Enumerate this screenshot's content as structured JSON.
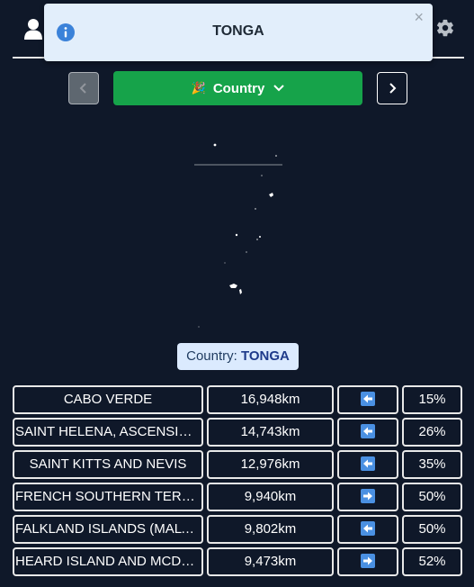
{
  "toast": {
    "message": "TONGA",
    "close": "×",
    "icon": "info-icon"
  },
  "header": {
    "user_icon": "user-icon",
    "settings_icon": "gear-icon"
  },
  "guess_button": {
    "label": "Country",
    "emoji": "🎉"
  },
  "answer": {
    "prefix": "Country: ",
    "name": "TONGA"
  },
  "colors": {
    "background": "#0f1829",
    "button_green": "#16a34a",
    "toast_bg": "#e2eefb",
    "label_bg": "#dbeafe",
    "arrow_blue": "#4a90e2"
  },
  "guesses": [
    {
      "name": "CABO VERDE",
      "distance": "16,948km",
      "direction": "left",
      "percent": "15%"
    },
    {
      "name": "SAINT HELENA, ASCENSION AND TRISTAN DA CUNHA",
      "distance": "14,743km",
      "direction": "left",
      "percent": "26%"
    },
    {
      "name": "SAINT KITTS AND NEVIS",
      "distance": "12,976km",
      "direction": "left",
      "percent": "35%"
    },
    {
      "name": "FRENCH SOUTHERN TERRITORIES",
      "distance": "9,940km",
      "direction": "right",
      "percent": "50%"
    },
    {
      "name": "FALKLAND ISLANDS (MALVINAS)",
      "distance": "9,802km",
      "direction": "left",
      "percent": "50%"
    },
    {
      "name": "HEARD ISLAND AND MCDONALD ISLANDS",
      "distance": "9,473km",
      "direction": "right",
      "percent": "52%"
    }
  ]
}
